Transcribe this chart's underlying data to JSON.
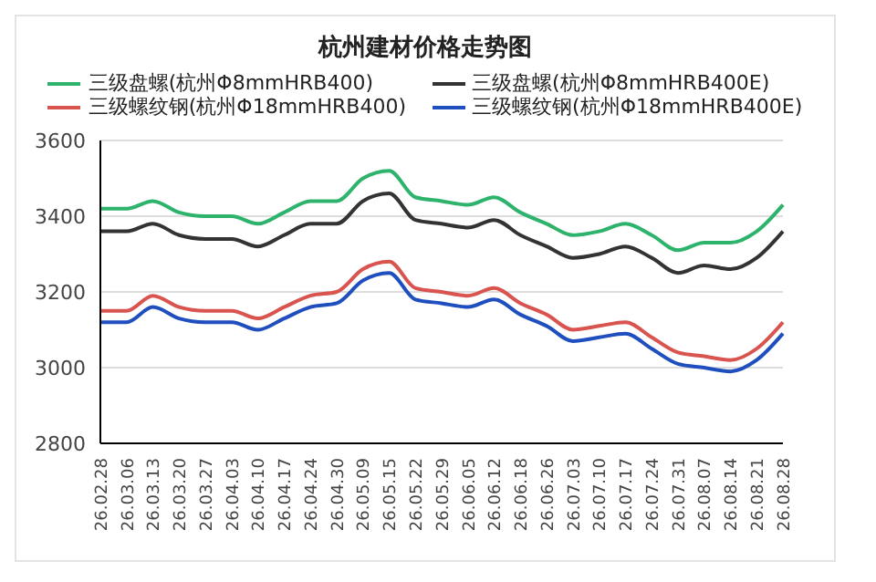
{
  "chart_data": {
    "type": "line",
    "title": "杭州建材价格走势图",
    "categories": [
      "26.02.28",
      "26.03.06",
      "26.03.13",
      "26.03.20",
      "26.03.27",
      "26.04.03",
      "26.04.10",
      "26.04.17",
      "26.04.24",
      "26.04.30",
      "26.05.09",
      "26.05.15",
      "26.05.22",
      "26.05.29",
      "26.06.05",
      "26.06.12",
      "26.06.18",
      "26.06.26",
      "26.07.03",
      "26.07.10",
      "26.07.17",
      "26.07.24",
      "26.07.31",
      "26.08.07",
      "26.08.14",
      "26.08.21",
      "26.08.28"
    ],
    "series": [
      {
        "name": "三级盘螺(杭州Φ8mmHRB400)",
        "color": "#2db36b",
        "values": [
          3420,
          3420,
          3440,
          3410,
          3400,
          3400,
          3380,
          3410,
          3440,
          3440,
          3500,
          3520,
          3450,
          3440,
          3430,
          3450,
          3410,
          3380,
          3350,
          3360,
          3380,
          3350,
          3310,
          3330,
          3330,
          3360,
          3430
        ]
      },
      {
        "name": "三级螺纹钢(杭州Φ18mmHRB400)",
        "color": "#d9534f",
        "values": [
          3150,
          3150,
          3190,
          3160,
          3150,
          3150,
          3130,
          3160,
          3190,
          3200,
          3260,
          3280,
          3210,
          3200,
          3190,
          3210,
          3170,
          3140,
          3100,
          3110,
          3120,
          3080,
          3040,
          3030,
          3020,
          3050,
          3120
        ]
      },
      {
        "name": "三级盘螺(杭州Φ8mmHRB400E)",
        "color": "#333333",
        "values": [
          3360,
          3360,
          3380,
          3350,
          3340,
          3340,
          3320,
          3350,
          3380,
          3380,
          3440,
          3460,
          3390,
          3380,
          3370,
          3390,
          3350,
          3320,
          3290,
          3300,
          3320,
          3290,
          3250,
          3270,
          3260,
          3290,
          3360
        ]
      },
      {
        "name": "三级螺纹钢(杭州Φ18mmHRB400E)",
        "color": "#1f4fbf",
        "values": [
          3120,
          3120,
          3160,
          3130,
          3120,
          3120,
          3100,
          3130,
          3160,
          3170,
          3230,
          3250,
          3180,
          3170,
          3160,
          3180,
          3140,
          3110,
          3070,
          3080,
          3090,
          3050,
          3010,
          3000,
          2990,
          3020,
          3090
        ]
      }
    ],
    "ylim": [
      2800,
      3600
    ],
    "yticks": [
      2800,
      3000,
      3200,
      3400,
      3600
    ],
    "grid": "y",
    "legend": "top",
    "marker": "none",
    "line_style": "solid"
  }
}
